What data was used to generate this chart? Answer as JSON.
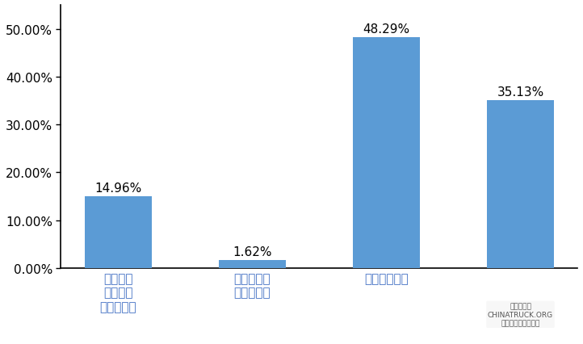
{
  "categories": [
    "参加所在\n单位组织\n的员工体检",
    "平台、园区\n组织的体检",
    "个人参加体检",
    ""
  ],
  "values": [
    0.1496,
    0.0162,
    0.4829,
    0.3513
  ],
  "value_labels": [
    "14.96%",
    "1.62%",
    "48.29%",
    "35.13%"
  ],
  "bar_color": "#5B9BD5",
  "ylim": [
    0,
    0.55
  ],
  "yticks": [
    0.0,
    0.1,
    0.2,
    0.3,
    0.4,
    0.5
  ],
  "ytick_labels": [
    "0.00%",
    "10.00%",
    "20.00%",
    "30.00%",
    "40.00%",
    "50.00%"
  ],
  "background_color": "#ffffff",
  "bar_width": 0.5,
  "label_fontsize": 11,
  "tick_fontsize": 11,
  "cat_fontsize": 11,
  "cat_color": "#4472C4",
  "label_color": "#000000"
}
